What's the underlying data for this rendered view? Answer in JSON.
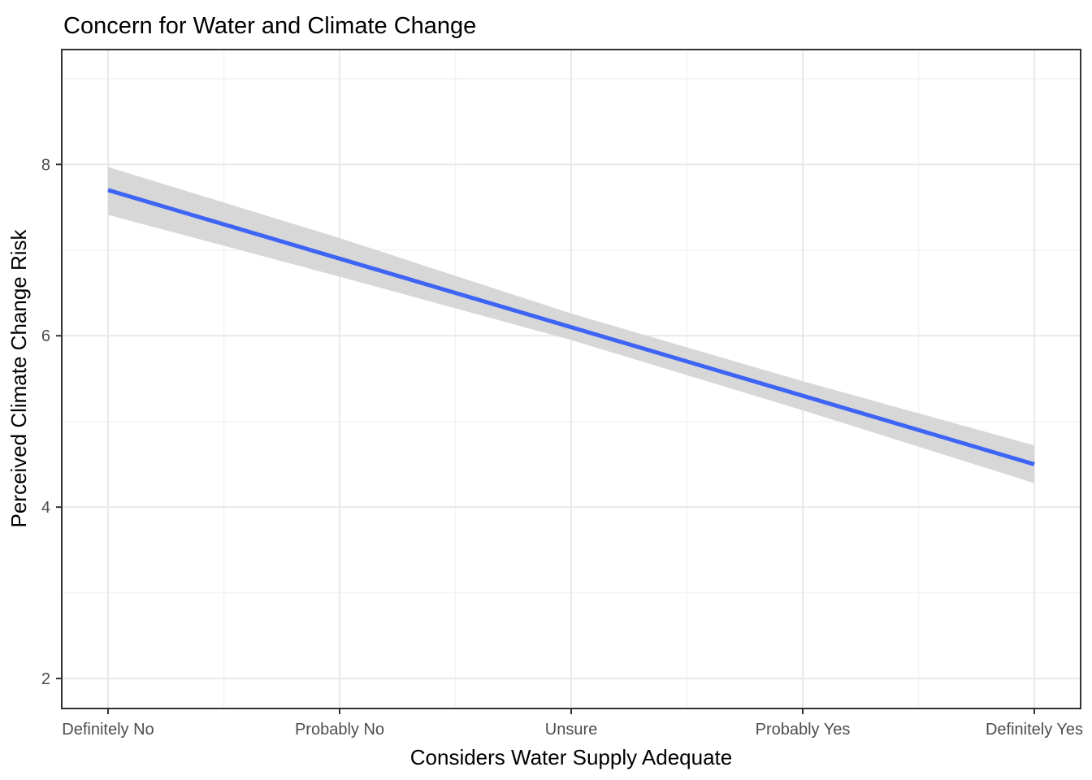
{
  "chart_data": {
    "type": "line",
    "title": "Concern for Water and Climate Change",
    "xlabel": "Considers Water Supply Adequate",
    "ylabel": "Perceived Climate Change Risk",
    "categories": [
      "Definitely No",
      "Probably No",
      "Unsure",
      "Probably Yes",
      "Definitely Yes"
    ],
    "series": [
      {
        "name": "linear_fit",
        "values": [
          7.7,
          6.9,
          6.1,
          5.3,
          4.5
        ]
      },
      {
        "name": "ci_lower",
        "values": [
          7.41,
          6.69,
          5.95,
          5.13,
          4.28
        ]
      },
      {
        "name": "ci_upper",
        "values": [
          7.97,
          7.14,
          6.26,
          5.47,
          4.72
        ]
      }
    ],
    "y_ticks": [
      2,
      4,
      6,
      8
    ],
    "y_minor_ticks": [
      3,
      5,
      7,
      9
    ],
    "ylim": [
      1.65,
      9.34
    ],
    "grid": "on",
    "legend": "none",
    "colors": {
      "line": "#3D64F4",
      "ribbon": "#D7D7D7",
      "grid_major": "#E9E9E9",
      "grid_minor": "#F3F3F3",
      "panel_border": "#333333",
      "tick_mark": "#333333",
      "axis_text": "#4D4D4D",
      "title_text": "#000000"
    }
  }
}
